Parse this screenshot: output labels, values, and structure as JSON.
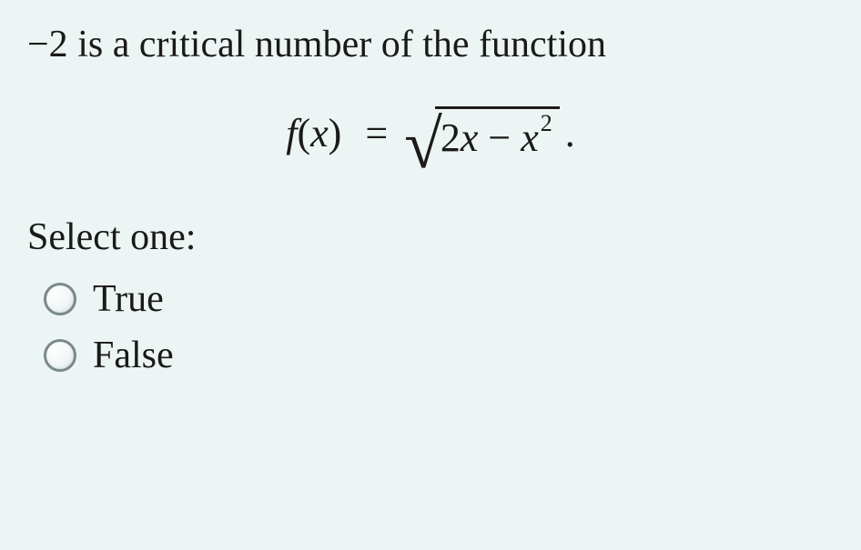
{
  "colors": {
    "background": "#edf4f4",
    "text": "#1a1a1a",
    "radio_border": "#7a8a8a"
  },
  "question": {
    "prefix_value": "−2",
    "text_after": " is a critical number of the function"
  },
  "formula": {
    "lhs_f": "f",
    "lhs_paren_open": "(",
    "lhs_x": "x",
    "lhs_paren_close": ")",
    "equals": "=",
    "radicand_part1": "2",
    "radicand_x1": "x",
    "radicand_minus": " − ",
    "radicand_x2": "x",
    "radicand_exp": "2",
    "period": "."
  },
  "prompt": "Select one:",
  "options": [
    {
      "label": "True"
    },
    {
      "label": "False"
    }
  ]
}
